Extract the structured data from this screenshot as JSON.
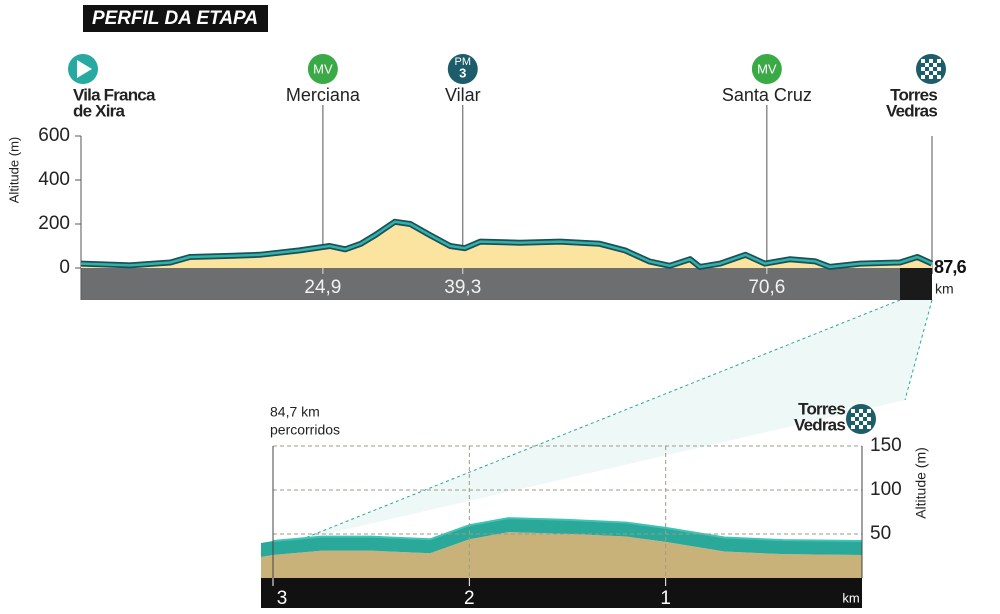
{
  "chart_data": [
    {
      "type": "area",
      "title": "PERFIL DA ETAPA",
      "y_label": "Altitude (m)",
      "x_unit": "km",
      "x": [
        0,
        5,
        9.2,
        11.2,
        15.3,
        18.4,
        22.5,
        25.6,
        27.2,
        28.8,
        30.3,
        32.3,
        33.9,
        35.9,
        38,
        39.5,
        41.1,
        45.2,
        49.3,
        53.4,
        56,
        58.5,
        60.6,
        62.7,
        63.7,
        65.8,
        68.4,
        70.4,
        73,
        75.6,
        77.1,
        80.2,
        84.3,
        86.1,
        87.6
      ],
      "values": [
        20,
        12,
        25,
        50,
        55,
        60,
        80,
        100,
        85,
        110,
        150,
        210,
        200,
        150,
        100,
        90,
        120,
        115,
        120,
        110,
        80,
        30,
        10,
        40,
        5,
        20,
        60,
        20,
        40,
        30,
        5,
        20,
        25,
        50,
        20
      ],
      "color": "#fbe3a0",
      "line_color": "#2fb3a8",
      "xlim": [
        0,
        87.6
      ],
      "ylim": [
        0,
        600
      ],
      "yticks": [
        0,
        200,
        400,
        600
      ],
      "xticks": [
        {
          "value": 24.9,
          "label": "24,9"
        },
        {
          "value": 39.3,
          "label": "39,3"
        },
        {
          "value": 70.6,
          "label": "70,6"
        },
        {
          "value": 87.6,
          "label": "87,6"
        }
      ],
      "waypoints": [
        {
          "km": 0,
          "icon": "start",
          "label": [
            "Vila Franca",
            "de Xira"
          ],
          "color": "#26a9a0"
        },
        {
          "km": 24.9,
          "badge": [
            "MV"
          ],
          "label": [
            "Merciana"
          ],
          "color": "#3aaa47"
        },
        {
          "km": 39.3,
          "badge": [
            "PM",
            "3"
          ],
          "label": [
            "Vilar"
          ],
          "color": "#1d5c6b"
        },
        {
          "km": 70.6,
          "badge": [
            "MV"
          ],
          "label": [
            "Santa Cruz"
          ],
          "color": "#3aaa47"
        },
        {
          "km": 87.6,
          "icon": "finish",
          "label": [
            "Torres",
            "Vedras"
          ],
          "color": "#1d5c6b"
        }
      ]
    },
    {
      "type": "area",
      "y_label": "Altitude (m)",
      "note": [
        "84,7 km",
        "percorridos"
      ],
      "finish": [
        "Torres",
        "Vedras"
      ],
      "x": [
        3,
        2.75,
        2.5,
        2.2,
        2,
        1.8,
        1.5,
        1.2,
        1,
        0.7,
        0.4,
        0
      ],
      "values": [
        42,
        47,
        47,
        44,
        60,
        68,
        66,
        63,
        57,
        46,
        43,
        42
      ],
      "color": "#c9b27a",
      "line_color": "#2aa89a",
      "xlim": [
        3,
        0
      ],
      "ylim": [
        0,
        150
      ],
      "xticks": [
        3,
        2,
        1
      ],
      "x_unit": "km",
      "yticks": [
        50,
        100,
        150
      ],
      "grid": true
    }
  ]
}
